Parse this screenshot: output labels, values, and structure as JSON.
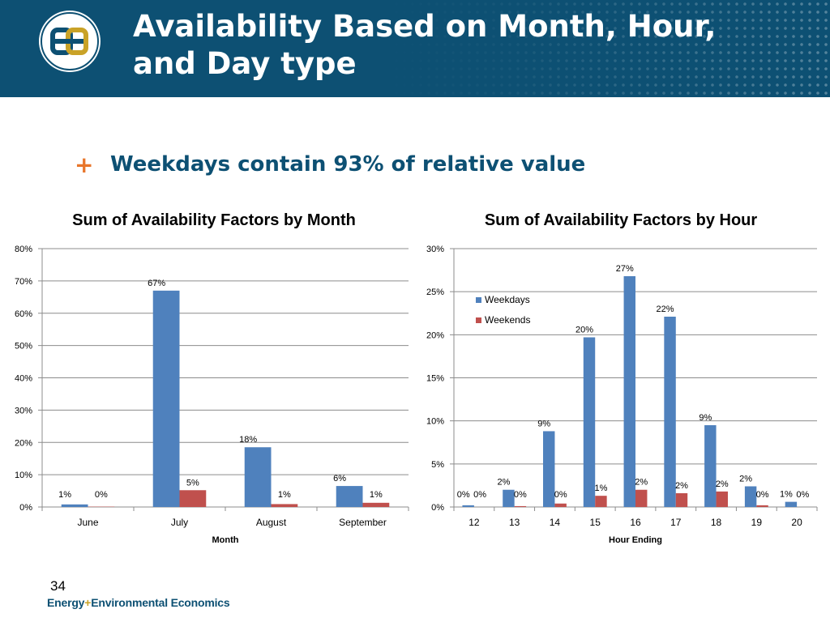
{
  "slide": {
    "title_line1": "Availability Based on Month, Hour,",
    "title_line2": "and Day type",
    "bullet_symbol": "+",
    "bullet_text": "Weekdays contain 93% of relative value",
    "page_number": "34",
    "footer_logo_part1": "Energy",
    "footer_logo_plus": "+",
    "footer_logo_part2": "Environmental Economics",
    "colors": {
      "header": "#0d5073",
      "accent": "#e8762b",
      "weekdays": "#4f81bd",
      "weekends": "#c0504d"
    }
  },
  "chart_data": [
    {
      "type": "bar",
      "title": "Sum of Availability Factors by Month",
      "xlabel": "Month",
      "ylabel": "",
      "ylim": [
        0,
        80
      ],
      "yticks": [
        "0%",
        "10%",
        "20%",
        "30%",
        "40%",
        "50%",
        "60%",
        "70%",
        "80%"
      ],
      "categories": [
        "June",
        "July",
        "August",
        "September"
      ],
      "series": [
        {
          "name": "Weekdays",
          "color": "#4f81bd",
          "values": [
            0.8,
            67,
            18.5,
            6.5
          ],
          "labels": [
            "1%",
            "67%",
            "18%",
            "6%"
          ]
        },
        {
          "name": "Weekends",
          "color": "#c0504d",
          "values": [
            0.1,
            5.2,
            0.9,
            1.3
          ],
          "labels": [
            "0%",
            "5%",
            "1%",
            "1%"
          ]
        }
      ],
      "grid": true,
      "legend": "none"
    },
    {
      "type": "bar",
      "title": "Sum of Availability Factors by Hour",
      "xlabel": "Hour Ending",
      "ylabel": "",
      "ylim": [
        0,
        30
      ],
      "yticks": [
        "0%",
        "5%",
        "10%",
        "15%",
        "20%",
        "25%",
        "30%"
      ],
      "categories": [
        "12",
        "13",
        "14",
        "15",
        "16",
        "17",
        "18",
        "19",
        "20"
      ],
      "series": [
        {
          "name": "Weekdays",
          "color": "#4f81bd",
          "values": [
            0.2,
            2.0,
            8.8,
            19.7,
            26.8,
            22.1,
            9.5,
            2.4,
            0.6
          ],
          "labels": [
            "0%",
            "2%",
            "9%",
            "20%",
            "27%",
            "22%",
            "9%",
            "2%",
            "1%"
          ]
        },
        {
          "name": "Weekends",
          "color": "#c0504d",
          "values": [
            0.0,
            0.1,
            0.4,
            1.3,
            2.0,
            1.6,
            1.8,
            0.2,
            0.0
          ],
          "labels": [
            "0%",
            "0%",
            "0%",
            "1%",
            "2%",
            "2%",
            "2%",
            "0%",
            "0%"
          ]
        }
      ],
      "grid": true,
      "legend": "top-left"
    }
  ]
}
